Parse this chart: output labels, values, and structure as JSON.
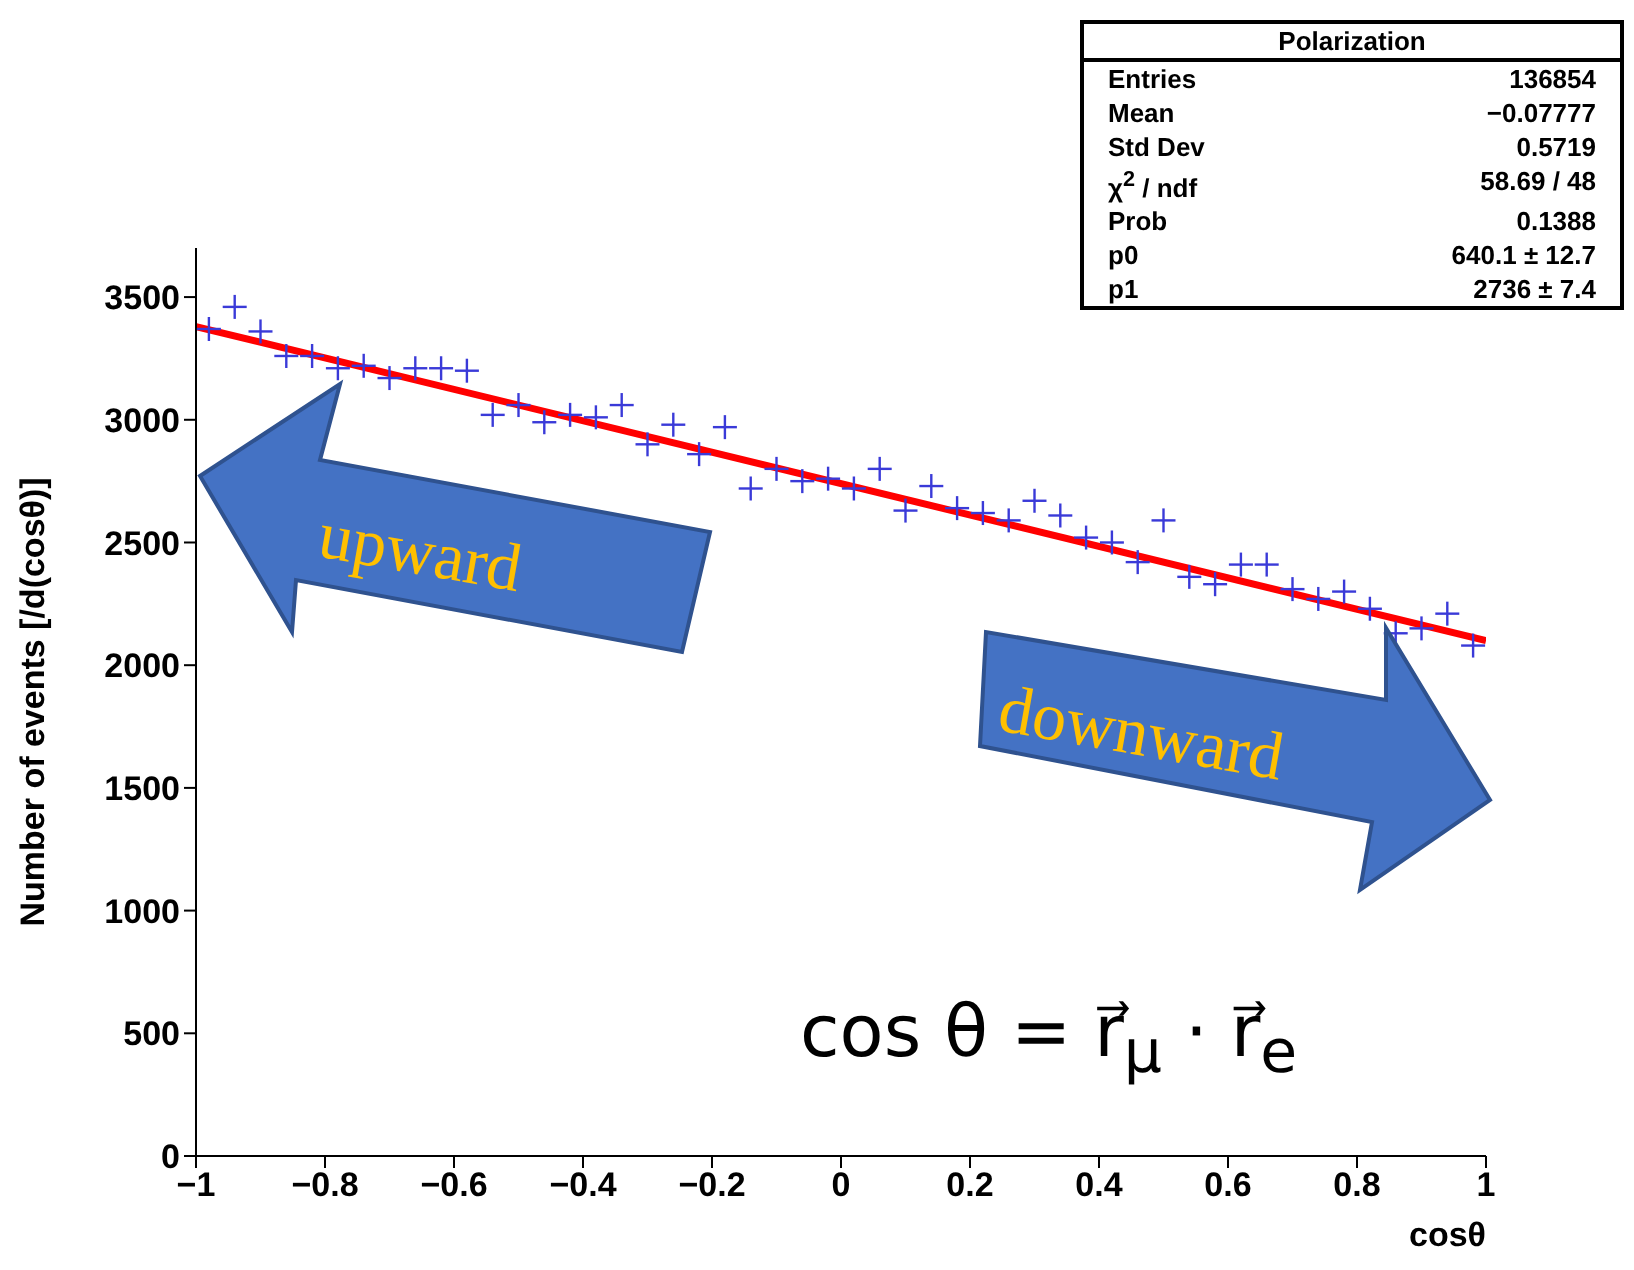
{
  "chart_data": {
    "type": "scatter",
    "xlabel": "cosθ",
    "ylabel": "Number of events [/d(cosθ)]",
    "xlim": [
      -1,
      1
    ],
    "ylim": [
      0,
      3700
    ],
    "xticks": [
      {
        "value": -1,
        "label": "−1"
      },
      {
        "value": -0.8,
        "label": "−0.8"
      },
      {
        "value": -0.6,
        "label": "−0.6"
      },
      {
        "value": -0.4,
        "label": "−0.4"
      },
      {
        "value": -0.2,
        "label": "−0.2"
      },
      0,
      0.2,
      0.4,
      0.6,
      0.8,
      1
    ],
    "yticks": [
      0,
      500,
      1000,
      1500,
      2000,
      2500,
      3000,
      3500
    ],
    "marker": "cross",
    "series": [
      {
        "color": "#3a3ad8",
        "x": [
          -0.98,
          -0.94,
          -0.9,
          -0.86,
          -0.82,
          -0.78,
          -0.74,
          -0.7,
          -0.66,
          -0.62,
          -0.58,
          -0.54,
          -0.5,
          -0.46,
          -0.42,
          -0.38,
          -0.34,
          -0.3,
          -0.26,
          -0.22,
          -0.18,
          -0.14,
          -0.1,
          -0.06,
          -0.02,
          0.02,
          0.06,
          0.1,
          0.14,
          0.18,
          0.22,
          0.26,
          0.3,
          0.34,
          0.38,
          0.42,
          0.46,
          0.5,
          0.54,
          0.58,
          0.62,
          0.66,
          0.7,
          0.74,
          0.78,
          0.82,
          0.86,
          0.9,
          0.94,
          0.98
        ],
        "values": [
          3370,
          3460,
          3360,
          3260,
          3260,
          3210,
          3220,
          3170,
          3210,
          3210,
          3200,
          3020,
          3060,
          2990,
          3020,
          3010,
          3060,
          2900,
          2980,
          2860,
          2970,
          2720,
          2800,
          2750,
          2760,
          2720,
          2800,
          2630,
          2730,
          2640,
          2620,
          2590,
          2670,
          2610,
          2520,
          2500,
          2420,
          2590,
          2360,
          2330,
          2410,
          2410,
          2310,
          2270,
          2300,
          2230,
          2130,
          2150,
          2210,
          2080
        ]
      },
      {
        "type": "line",
        "color": "#ff0000",
        "x": [
          -1,
          1
        ],
        "values": [
          3380,
          2100
        ],
        "line_style": "solid",
        "marker": "none"
      }
    ],
    "annotations": [
      "Polarization",
      "Entries",
      "136854",
      "Mean",
      "−0.07777",
      "Std Dev",
      "0.5719",
      "χ$^{2}$ / ndf",
      "58.69 / 48",
      "Prob",
      "0.1388",
      "p0",
      "640.1 ± 12.7",
      "p1",
      "2736 ± 7.4",
      "upward",
      "downward",
      "cos θ = r⃗$_{μ}$ · r⃗$_{e}$"
    ]
  }
}
